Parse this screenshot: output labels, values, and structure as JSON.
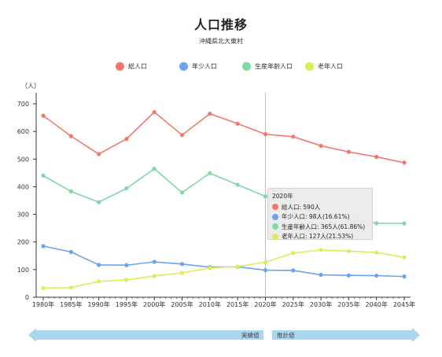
{
  "chart_title": "人口推移",
  "chart_subtitle": "沖縄県北大東村",
  "y_unit": "（人）",
  "legend": [
    {
      "label": "総人口",
      "color": "#f4776d"
    },
    {
      "label": "年少人口",
      "color": "#6ca3f0"
    },
    {
      "label": "生産年齢人口",
      "color": "#7fd9a4"
    },
    {
      "label": "老年人口",
      "color": "#d8ef58"
    }
  ],
  "tooltip": {
    "title": "2020年",
    "rows": [
      {
        "text": "総人口: 590人",
        "color": "#f4776d"
      },
      {
        "text": "年少人口: 98人(16.61%)",
        "color": "#6ca3f0"
      },
      {
        "text": "生産年齢人口: 365人(61.86%)",
        "color": "#7fd9a4"
      },
      {
        "text": "老年人口: 127人(21.53%)",
        "color": "#d8ef58"
      }
    ]
  },
  "timeline": {
    "actual_label": "実績値",
    "projection_label": "推計値",
    "color": "#a9d6ec"
  },
  "chart_data": {
    "type": "line",
    "title": "人口推移",
    "subtitle": "沖縄県北大東村",
    "ylabel": "（人）",
    "ylim": [
      0,
      700
    ],
    "yticks": [
      0,
      100,
      200,
      300,
      400,
      500,
      600,
      700
    ],
    "categories": [
      "1980年",
      "1985年",
      "1990年",
      "1995年",
      "2000年",
      "2005年",
      "2010年",
      "2015年",
      "2020年",
      "2025年",
      "2030年",
      "2035年",
      "2040年",
      "2045年"
    ],
    "series": [
      {
        "name": "総人口",
        "color": "#f4776d",
        "values": [
          657,
          583,
          518,
          573,
          670,
          587,
          664,
          628,
          590,
          581,
          548,
          526,
          508,
          487
        ]
      },
      {
        "name": "年少人口",
        "color": "#6ca3f0",
        "values": [
          185,
          164,
          117,
          116,
          128,
          120,
          109,
          110,
          98,
          97,
          81,
          79,
          78,
          75
        ]
      },
      {
        "name": "生産年齢人口",
        "color": "#7fd9a4",
        "values": [
          440,
          383,
          344,
          394,
          465,
          379,
          449,
          407,
          365,
          328,
          296,
          282,
          268,
          267
        ]
      },
      {
        "name": "老年人口",
        "color": "#d8ef58",
        "values": [
          33,
          35,
          57,
          63,
          77,
          88,
          106,
          111,
          127,
          160,
          171,
          167,
          162,
          144
        ]
      }
    ],
    "marker_category": "2020年",
    "grid": false
  }
}
